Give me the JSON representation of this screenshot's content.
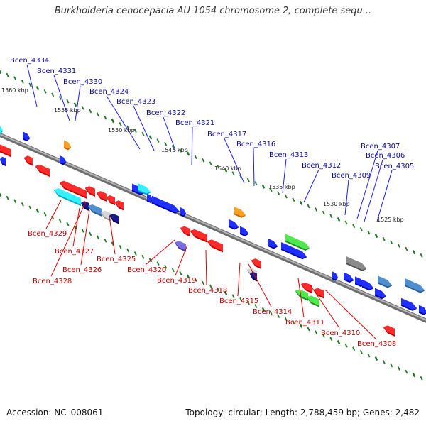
{
  "title": "Burkholderia cenocepacia AU 1054 chromosome 2, complete sequ...",
  "footer": {
    "accession": "Accession: NC_008061",
    "info": "Topology: circular; Length: 2,788,459 bp; Genes: 2,482"
  },
  "colors": {
    "backbone": "#8a8a8a",
    "tick": "#1f7a1f",
    "upper_label": "#0a0aa0",
    "lower_label": "#c00000"
  },
  "scale_labels": [
    "1560 kbp",
    "1555 kbp",
    "1550 kbp",
    "1545 kbp",
    "1540 kbp",
    "1535 kbp",
    "1530 kbp",
    "1525 kbp"
  ],
  "upper_genes": [
    "Bcen_4334",
    "Bcen_4331",
    "Bcen_4330",
    "Bcen_4324",
    "Bcen_4323",
    "Bcen_4322",
    "Bcen_4321",
    "Bcen_4317",
    "Bcen_4316",
    "Bcen_4313",
    "Bcen_4312",
    "Bcen_4309",
    "Bcen_4307",
    "Bcen_4306",
    "Bcen_4305"
  ],
  "lower_genes": [
    "Bcen_4329",
    "Bcen_4327",
    "Bcen_4326",
    "Bcen_4328",
    "Bcen_4325",
    "Bcen_4320",
    "Bcen_4319",
    "Bcen_4318",
    "Bcen_4315",
    "Bcen_4314",
    "Bcen_4311",
    "Bcen_4310",
    "Bcen_4308"
  ]
}
